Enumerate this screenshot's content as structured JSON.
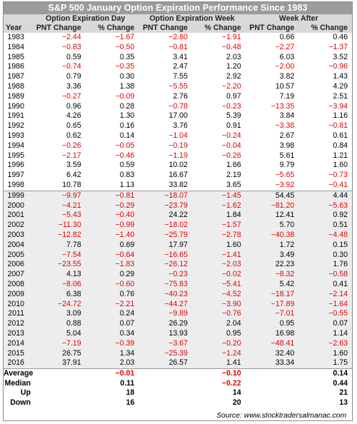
{
  "title": "S&P 500 January Option Expiration Performance Since 1983",
  "groups": [
    "Option Expiration Day",
    "Option Expiration Week",
    "Week After"
  ],
  "columns": [
    "Year",
    "PNT Change",
    "% Change",
    "PNT Change",
    "% Change",
    "PNT Change",
    "% Change"
  ],
  "rows": [
    [
      "1983",
      "−2.44",
      "−1.67",
      "−2.80",
      "−1.91",
      "0.66",
      "0.46"
    ],
    [
      "1984",
      "−0.83",
      "−0.50",
      "−0.81",
      "−0.48",
      "−2.27",
      "−1.37"
    ],
    [
      "1985",
      "0.59",
      "0.35",
      "3.41",
      "2.03",
      "6.03",
      "3.52"
    ],
    [
      "1986",
      "−0.74",
      "−0.35",
      "2.47",
      "1.20",
      "−2.00",
      "−0.96"
    ],
    [
      "1987",
      "0.79",
      "0.30",
      "7.55",
      "2.92",
      "3.82",
      "1.43"
    ],
    [
      "1988",
      "3.36",
      "1.38",
      "−5.55",
      "−2.20",
      "10.57",
      "4.29"
    ],
    [
      "1989",
      "−0.27",
      "−0.09",
      "2.76",
      "0.97",
      "7.19",
      "2.51"
    ],
    [
      "1990",
      "0.96",
      "0.28",
      "−0.78",
      "−0.23",
      "−13.35",
      "−3.94"
    ],
    [
      "1991",
      "4.26",
      "1.30",
      "17.00",
      "5.39",
      "3.84",
      "1.16"
    ],
    [
      "1992",
      "0.65",
      "0.16",
      "3.76",
      "0.91",
      "−3.38",
      "−0.81"
    ],
    [
      "1993",
      "0.62",
      "0.14",
      "−1.04",
      "−0.24",
      "2.67",
      "0.61"
    ],
    [
      "1994",
      "−0.26",
      "−0.05",
      "−0.19",
      "−0.04",
      "3.98",
      "0.84"
    ],
    [
      "1995",
      "−2.17",
      "−0.46",
      "−1.19",
      "−0.26",
      "5.61",
      "1.21"
    ],
    [
      "1996",
      "3.59",
      "0.59",
      "10.02",
      "1.66",
      "9.79",
      "1.60"
    ],
    [
      "1997",
      "6.42",
      "0.83",
      "16.67",
      "2.19",
      "−5.65",
      "−0.73"
    ],
    [
      "1998",
      "10.78",
      "1.13",
      "33.82",
      "3.65",
      "−3.92",
      "−0.41"
    ],
    [
      "1999",
      "−9.97",
      "−0.81",
      "−18.07",
      "−1.45",
      "54.45",
      "4.44"
    ],
    [
      "2000",
      "−4.21",
      "−0.29",
      "−23.79",
      "−1.62",
      "−81.20",
      "−5.63"
    ],
    [
      "2001",
      "−5.43",
      "−0.40",
      "24.22",
      "1.84",
      "12.41",
      "0.92"
    ],
    [
      "2002",
      "−11.30",
      "−0.99",
      "−18.02",
      "−1.57",
      "5.70",
      "0.51"
    ],
    [
      "2003",
      "−12.82",
      "−1.40",
      "−25.79",
      "−2.78",
      "−40.38",
      "−4.48"
    ],
    [
      "2004",
      "7.78",
      "0.69",
      "17.97",
      "1.60",
      "1.72",
      "0.15"
    ],
    [
      "2005",
      "−7.54",
      "−0.64",
      "−16.65",
      "−1.41",
      "3.49",
      "0.30"
    ],
    [
      "2006",
      "−23.55",
      "−1.83",
      "−26.12",
      "−2.03",
      "22.23",
      "1.76"
    ],
    [
      "2007",
      "4.13",
      "0.29",
      "−0.23",
      "−0.02",
      "−8.32",
      "−0.58"
    ],
    [
      "2008",
      "−8.06",
      "−0.60",
      "−75.83",
      "−5.41",
      "5.42",
      "0.41"
    ],
    [
      "2009",
      "6.38",
      "0.76",
      "−40.23",
      "−4.52",
      "−18.17",
      "−2.14"
    ],
    [
      "2010",
      "−24.72",
      "−2.21",
      "−44.27",
      "−3.90",
      "−17.89",
      "−1.64"
    ],
    [
      "2011",
      "3.09",
      "0.24",
      "−9.89",
      "−0.76",
      "−7.01",
      "−0.55"
    ],
    [
      "2012",
      "0.88",
      "0.07",
      "26.29",
      "2.04",
      "0.95",
      "0.07"
    ],
    [
      "2013",
      "5.04",
      "0.34",
      "13.93",
      "0.95",
      "16.98",
      "1.14"
    ],
    [
      "2014",
      "−7.19",
      "−0.39",
      "−3.67",
      "−0.20",
      "−48.41",
      "−2.63"
    ],
    [
      "2015",
      "26.75",
      "1.34",
      "−25.39",
      "−1.24",
      "32.40",
      "1.60"
    ],
    [
      "2016",
      "37.91",
      "2.03",
      "26.57",
      "1.41",
      "33.34",
      "1.75"
    ]
  ],
  "summary": [
    {
      "label": "Average",
      "values": [
        "−0.01",
        "−0.10",
        "0.14"
      ]
    },
    {
      "label": "Median",
      "values": [
        "0.11",
        "−0.22",
        "0.44"
      ]
    },
    {
      "label": "Up",
      "values": [
        "18",
        "14",
        "21"
      ]
    },
    {
      "label": "Down",
      "values": [
        "16",
        "20",
        "13"
      ]
    }
  ],
  "source": "Source: www.stocktradersalmanac.com",
  "colors": {
    "negative": "#e60000",
    "title_bg": "#9b9b9b",
    "header_bg": "#d9d9d9",
    "shade_bg": "#ededed"
  }
}
